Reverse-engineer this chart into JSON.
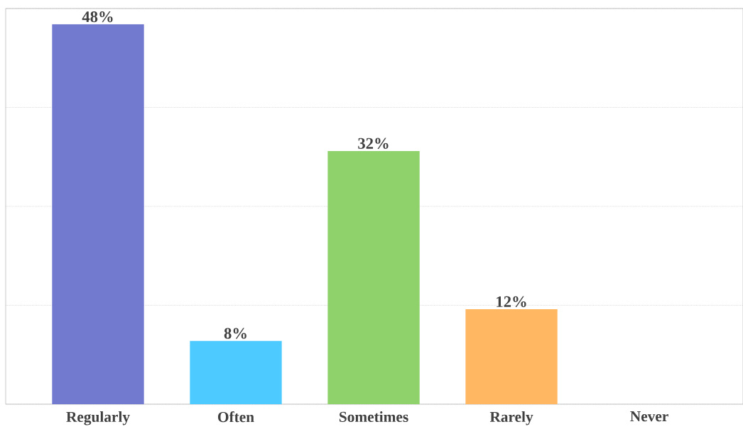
{
  "chart_data": {
    "type": "bar",
    "categories": [
      "Regularly",
      "Often",
      "Sometimes",
      "Rarely",
      "Never"
    ],
    "values": [
      48,
      8,
      32,
      12,
      0
    ],
    "colors": [
      "#717ace",
      "#4dcaff",
      "#8fd16b",
      "#ffb762",
      "#cccccc"
    ],
    "value_labels": [
      "48%",
      "8%",
      "32%",
      "12%",
      null
    ],
    "ylim": [
      0,
      50
    ],
    "yticks": [
      {
        "value": 0,
        "label": null
      },
      {
        "value": 12.5,
        "label": null
      },
      {
        "value": 25,
        "label": null
      },
      {
        "value": 37.5,
        "label": null
      },
      {
        "value": 50,
        "label": null
      }
    ],
    "tick_labels": "x",
    "grid": "y"
  }
}
